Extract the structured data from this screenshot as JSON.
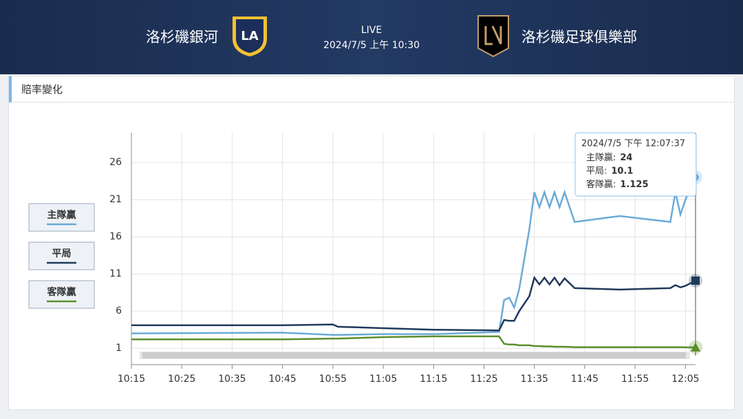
{
  "header": {
    "home_team": "洛杉磯銀河",
    "home_logo": "LA",
    "status": "LIVE",
    "datetime": "2024/7/5 上午 10:30",
    "away_team": "洛杉磯足球俱樂部"
  },
  "panel_title": "賠率變化",
  "chart_data": {
    "type": "line",
    "x": [
      "10:15",
      "10:45",
      "10:55",
      "10:56",
      "11:05",
      "11:15",
      "11:28",
      "11:29",
      "11:30",
      "11:31",
      "11:32",
      "11:34",
      "11:35",
      "11:36",
      "11:37",
      "11:38",
      "11:39",
      "11:40",
      "11:41",
      "11:43",
      "11:52",
      "12:02",
      "12:03",
      "12:04",
      "12:05",
      "12:07"
    ],
    "series": [
      {
        "name": "主隊贏",
        "color": "#6aaad8",
        "values": [
          3.0,
          3.1,
          2.8,
          2.8,
          2.9,
          2.9,
          3.2,
          7.5,
          7.8,
          6.5,
          9,
          17,
          22,
          20,
          22,
          20,
          22,
          20,
          22,
          18,
          18.8,
          18,
          22,
          19,
          21,
          24
        ]
      },
      {
        "name": "平局",
        "color": "#1f3a5a",
        "values": [
          4.1,
          4.1,
          4.2,
          3.9,
          3.7,
          3.5,
          3.4,
          4.8,
          4.7,
          4.7,
          6,
          8,
          10.5,
          9.6,
          10.5,
          9.6,
          10.5,
          9.5,
          10.4,
          9.1,
          8.9,
          9.1,
          9.5,
          9.2,
          9.4,
          10.1
        ]
      },
      {
        "name": "客隊贏",
        "color": "#5a8f2a",
        "values": [
          2.2,
          2.2,
          2.3,
          2.3,
          2.5,
          2.6,
          2.6,
          1.6,
          1.5,
          1.5,
          1.4,
          1.4,
          1.3,
          1.3,
          1.25,
          1.25,
          1.2,
          1.2,
          1.2,
          1.15,
          1.15,
          1.15,
          1.15,
          1.15,
          1.13,
          1.125
        ]
      }
    ],
    "xlim": [
      "10:15",
      "12:07"
    ],
    "xticks": [
      "10:15",
      "10:25",
      "10:35",
      "10:45",
      "10:55",
      "11:05",
      "11:15",
      "11:25",
      "11:35",
      "11:45",
      "11:55",
      "12:05"
    ],
    "ylim": [
      0,
      30
    ],
    "yticks": [
      1,
      6,
      11,
      16,
      21,
      26
    ],
    "grid": true,
    "legend": "left",
    "tooltip": {
      "title": "2024/7/5 下午 12:07:37",
      "labels": [
        "主隊贏:",
        "平局:",
        "客隊贏:"
      ]
    }
  }
}
